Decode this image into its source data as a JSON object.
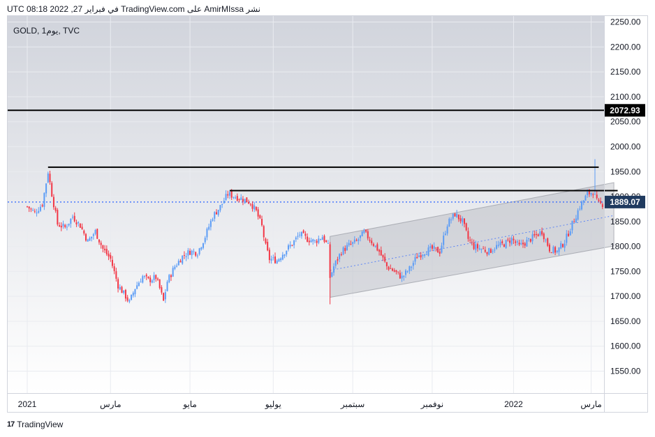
{
  "header": {
    "text": "نشر AmirMIssa على TradingView.com في فبراير 27, 2022 08:18 UTC"
  },
  "footer": {
    "logo": "17",
    "brand": "TradingView"
  },
  "colors": {
    "up": "#5b9cf6",
    "down": "#f23645",
    "grid": "#e9ebf0",
    "level": "#000000",
    "dotted": "#2962ff"
  },
  "chart_data": {
    "type": "candlestick",
    "title": "GOLD, 1يوم, TVC",
    "symbol": "GOLD",
    "interval": "1يوم",
    "exchange": "TVC",
    "y_ticks": [
      "2250.00",
      "2200.00",
      "2150.00",
      "2100.00",
      "2050.00",
      "2000.00",
      "1950.00",
      "1900.00",
      "1850.00",
      "1800.00",
      "1750.00",
      "1700.00",
      "1650.00",
      "1600.00",
      "1550.00"
    ],
    "y_tick_values": [
      2250,
      2200,
      2150,
      2100,
      2050,
      2000,
      1950,
      1900,
      1850,
      1800,
      1750,
      1700,
      1650,
      1600,
      1550
    ],
    "ylim": [
      1506,
      2262
    ],
    "x_ticks": [
      "2021",
      "مارس",
      "مايو",
      "يوليو",
      "سبتمبر",
      "نوفمبر",
      "2022",
      "مارس"
    ],
    "x_tick_index": [
      0,
      44,
      86,
      130,
      172,
      214,
      257,
      298
    ],
    "n_candles": 305,
    "price_labels": [
      {
        "value": 2072.93,
        "text": "2072.93",
        "style": "solid-black"
      },
      {
        "value": 1889.07,
        "text": "1889.07",
        "style": "dotted-blue"
      }
    ],
    "resistance_lines": [
      {
        "value": 1959,
        "from_index": 11,
        "to_index": 302
      },
      {
        "value": 1912,
        "from_index": 107,
        "to_index": 312
      }
    ],
    "channel": {
      "start_index": 160,
      "end_index": 310,
      "upper": [
        1820,
        1928
      ],
      "lower": [
        1698,
        1801
      ],
      "mid": [
        1752,
        1862
      ]
    },
    "keypoints": [
      [
        0,
        1880
      ],
      [
        4,
        1868
      ],
      [
        8,
        1885
      ],
      [
        11,
        1950
      ],
      [
        13,
        1905
      ],
      [
        16,
        1845
      ],
      [
        20,
        1838
      ],
      [
        24,
        1860
      ],
      [
        28,
        1842
      ],
      [
        32,
        1810
      ],
      [
        36,
        1830
      ],
      [
        40,
        1795
      ],
      [
        44,
        1775
      ],
      [
        48,
        1722
      ],
      [
        52,
        1700
      ],
      [
        54,
        1688
      ],
      [
        57,
        1717
      ],
      [
        61,
        1740
      ],
      [
        64,
        1732
      ],
      [
        68,
        1738
      ],
      [
        70,
        1716
      ],
      [
        72,
        1690
      ],
      [
        74,
        1730
      ],
      [
        78,
        1760
      ],
      [
        82,
        1780
      ],
      [
        86,
        1790
      ],
      [
        90,
        1788
      ],
      [
        94,
        1820
      ],
      [
        98,
        1860
      ],
      [
        102,
        1880
      ],
      [
        106,
        1905
      ],
      [
        110,
        1900
      ],
      [
        114,
        1895
      ],
      [
        118,
        1888
      ],
      [
        121,
        1870
      ],
      [
        124,
        1840
      ],
      [
        126,
        1800
      ],
      [
        128,
        1775
      ],
      [
        132,
        1772
      ],
      [
        136,
        1790
      ],
      [
        140,
        1805
      ],
      [
        144,
        1825
      ],
      [
        148,
        1815
      ],
      [
        152,
        1810
      ],
      [
        156,
        1820
      ],
      [
        159,
        1800
      ],
      [
        160,
        1738
      ],
      [
        162,
        1760
      ],
      [
        166,
        1790
      ],
      [
        170,
        1802
      ],
      [
        174,
        1810
      ],
      [
        178,
        1828
      ],
      [
        182,
        1810
      ],
      [
        186,
        1790
      ],
      [
        190,
        1760
      ],
      [
        194,
        1750
      ],
      [
        198,
        1738
      ],
      [
        202,
        1755
      ],
      [
        206,
        1780
      ],
      [
        210,
        1790
      ],
      [
        214,
        1795
      ],
      [
        218,
        1790
      ],
      [
        222,
        1845
      ],
      [
        226,
        1865
      ],
      [
        230,
        1850
      ],
      [
        233,
        1815
      ],
      [
        236,
        1800
      ],
      [
        240,
        1795
      ],
      [
        244,
        1790
      ],
      [
        248,
        1800
      ],
      [
        252,
        1805
      ],
      [
        256,
        1815
      ],
      [
        260,
        1800
      ],
      [
        264,
        1810
      ],
      [
        268,
        1820
      ],
      [
        272,
        1830
      ],
      [
        276,
        1795
      ],
      [
        280,
        1790
      ],
      [
        284,
        1810
      ],
      [
        288,
        1845
      ],
      [
        292,
        1880
      ],
      [
        296,
        1905
      ],
      [
        299,
        1910
      ],
      [
        301,
        1890
      ],
      [
        302,
        1885
      ]
    ]
  }
}
